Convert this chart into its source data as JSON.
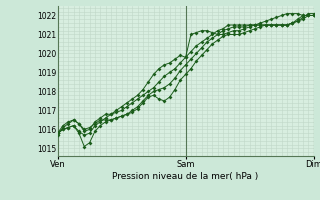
{
  "title": "Pression niveau de la mer( hPa )",
  "bg_color": "#cce8d8",
  "plot_bg_color": "#d8eee0",
  "grid_color": "#c0d8c8",
  "line_color": "#1a5c1a",
  "marker_color": "#1a5c1a",
  "vline_color": "#557755",
  "ylim": [
    1014.6,
    1022.5
  ],
  "yticks": [
    1015,
    1016,
    1017,
    1018,
    1019,
    1020,
    1021,
    1022
  ],
  "xtick_labels": [
    "Ven",
    "Sam",
    "Dim"
  ],
  "xtick_positions": [
    0,
    24,
    48
  ],
  "total_points": 49,
  "series": [
    [
      1015.8,
      1016.0,
      1016.1,
      1016.2,
      1015.9,
      1015.7,
      1015.8,
      1016.2,
      1016.4,
      1016.6,
      1016.8,
      1017.0,
      1017.2,
      1017.4,
      1017.6,
      1017.8,
      1018.1,
      1018.5,
      1018.9,
      1019.2,
      1019.4,
      1019.5,
      1019.7,
      1019.9,
      1019.8,
      1021.0,
      1021.1,
      1021.2,
      1021.2,
      1021.1,
      1021.0,
      1021.0,
      1021.1,
      1021.2,
      1021.2,
      1021.3,
      1021.4,
      1021.5,
      1021.6,
      1021.7,
      1021.8,
      1021.9,
      1022.0,
      1022.1,
      1022.1,
      1022.1,
      1022.0,
      1022.0,
      1022.0
    ],
    [
      1015.8,
      1016.0,
      1016.1,
      1016.2,
      1015.8,
      1015.1,
      1015.3,
      1015.9,
      1016.2,
      1016.4,
      1016.5,
      1016.6,
      1016.7,
      1016.8,
      1016.9,
      1017.1,
      1017.4,
      1017.7,
      1017.8,
      1017.6,
      1017.5,
      1017.7,
      1018.1,
      1018.6,
      1018.9,
      1019.2,
      1019.6,
      1019.9,
      1020.2,
      1020.5,
      1020.7,
      1020.9,
      1021.0,
      1021.0,
      1021.0,
      1021.1,
      1021.2,
      1021.3,
      1021.4,
      1021.5,
      1021.5,
      1021.5,
      1021.5,
      1021.5,
      1021.6,
      1021.7,
      1021.8,
      1022.0,
      1022.0
    ],
    [
      1015.8,
      1016.2,
      1016.4,
      1016.5,
      1016.3,
      1015.9,
      1016.0,
      1016.4,
      1016.6,
      1016.8,
      1016.8,
      1016.9,
      1017.0,
      1017.2,
      1017.4,
      1017.6,
      1017.8,
      1018.0,
      1018.2,
      1018.5,
      1018.8,
      1019.0,
      1019.2,
      1019.5,
      1019.8,
      1020.1,
      1020.4,
      1020.6,
      1020.8,
      1021.0,
      1021.2,
      1021.3,
      1021.5,
      1021.5,
      1021.5,
      1021.5,
      1021.5,
      1021.5,
      1021.5,
      1021.5,
      1021.5,
      1021.5,
      1021.5,
      1021.5,
      1021.6,
      1021.8,
      1022.0,
      1022.0,
      1022.0
    ],
    [
      1015.7,
      1016.1,
      1016.3,
      1016.5,
      1016.3,
      1016.0,
      1016.1,
      1016.3,
      1016.5,
      1016.5,
      1016.5,
      1016.6,
      1016.7,
      1016.8,
      1017.0,
      1017.2,
      1017.5,
      1017.8,
      1018.0,
      1018.1,
      1018.2,
      1018.4,
      1018.7,
      1019.1,
      1019.4,
      1019.7,
      1020.0,
      1020.3,
      1020.6,
      1020.8,
      1021.0,
      1021.2,
      1021.3,
      1021.4,
      1021.4,
      1021.4,
      1021.5,
      1021.5,
      1021.5,
      1021.5,
      1021.5,
      1021.5,
      1021.5,
      1021.5,
      1021.6,
      1021.7,
      1021.9,
      1022.1,
      1022.1
    ]
  ]
}
